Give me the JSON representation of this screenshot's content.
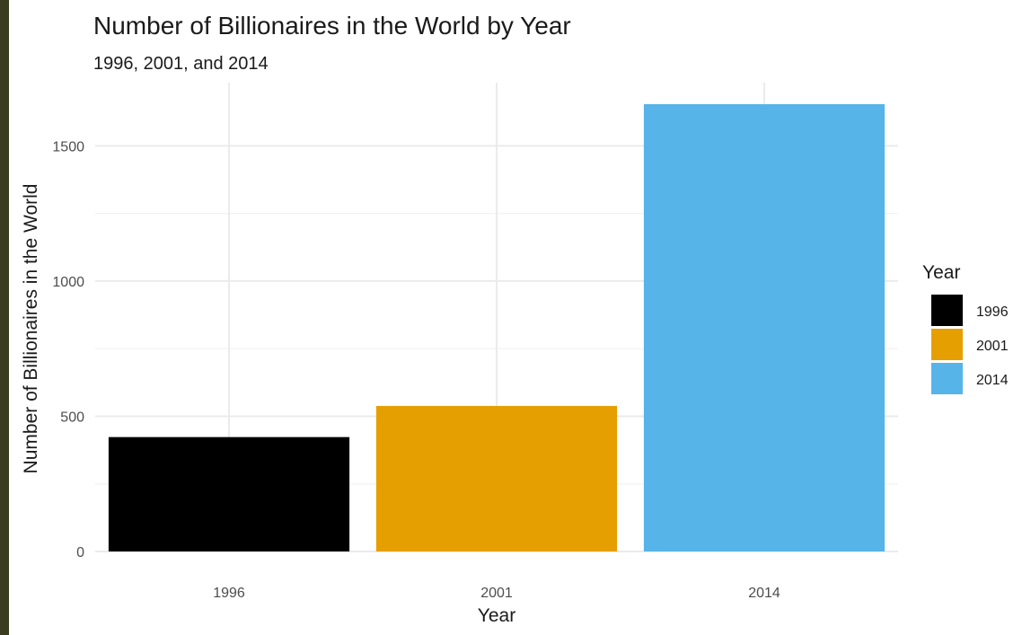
{
  "chart_data": {
    "type": "bar",
    "title": "Number of Billionaires in the World by Year",
    "subtitle": "1996, 2001, and 2014",
    "xlabel": "Year",
    "ylabel": "Number of Billionaires in the World",
    "categories": [
      "1996",
      "2001",
      "2014"
    ],
    "values": [
      423,
      538,
      1654
    ],
    "colors": [
      "#000000",
      "#E69F00",
      "#56B4E9"
    ],
    "ylim": [
      0,
      1654
    ],
    "yticks": [
      0,
      500,
      1000,
      1500
    ],
    "yticks_labels": [
      "0",
      "500",
      "1000",
      "1500"
    ],
    "grid": true,
    "legend": {
      "title": "Year",
      "placement": "right",
      "entries": [
        "1996",
        "2001",
        "2014"
      ]
    }
  }
}
